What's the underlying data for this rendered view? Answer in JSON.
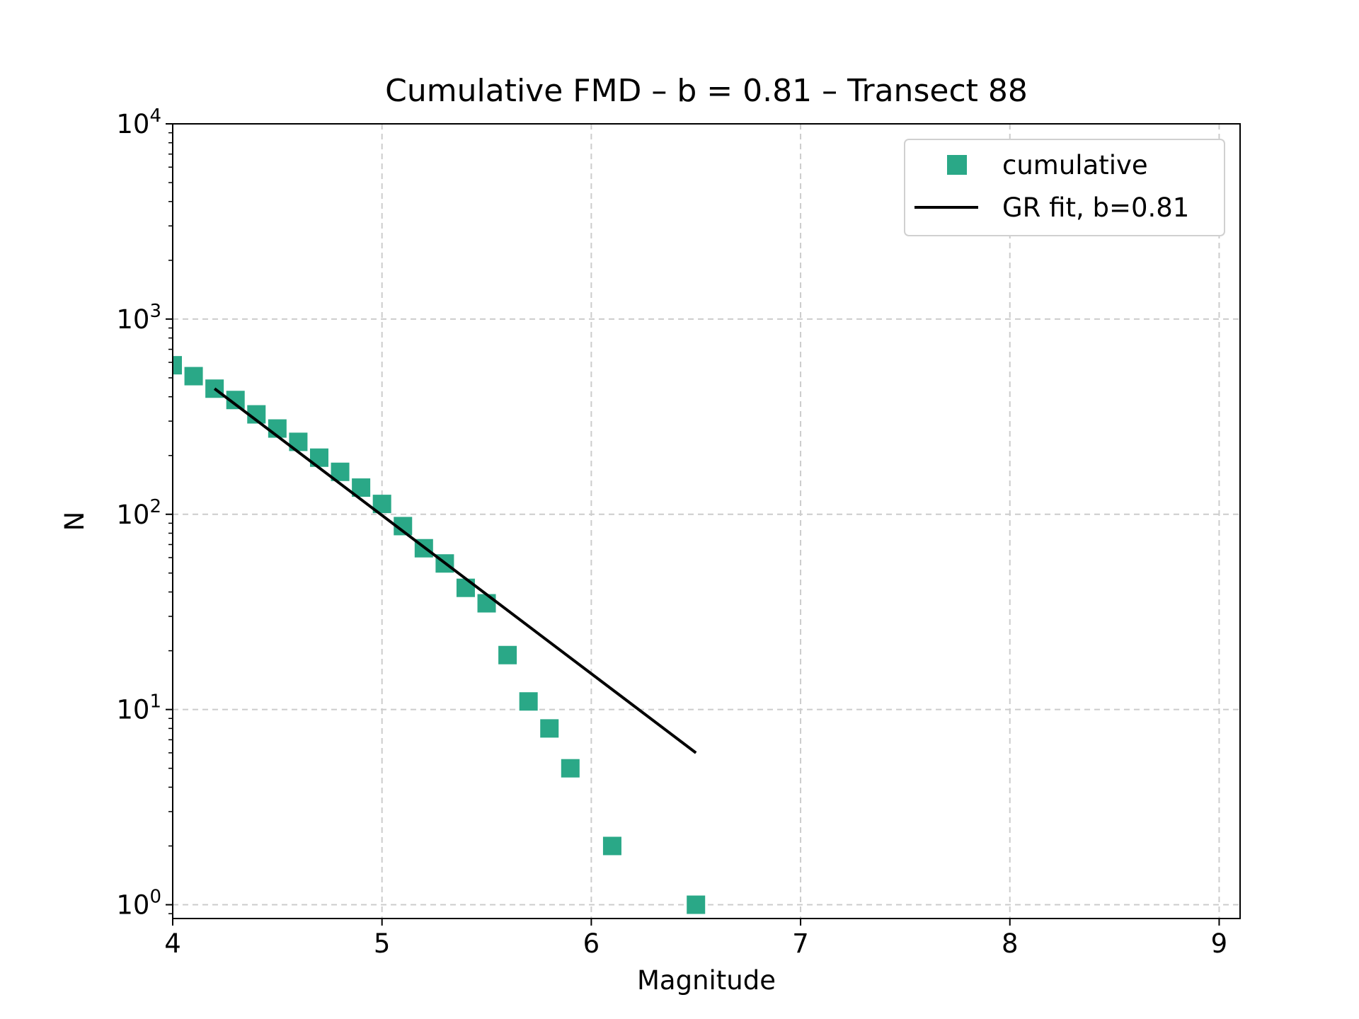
{
  "chart_data": {
    "type": "scatter",
    "title": "Cumulative FMD – b = 0.81 – Transect 88",
    "xlabel": "Magnitude",
    "ylabel": "N",
    "xlim": [
      4.0,
      9.1
    ],
    "ylim": [
      0.85,
      10000
    ],
    "yscale": "log",
    "grid": true,
    "legend_position": "top-right",
    "x_ticks": [
      4,
      5,
      6,
      7,
      8,
      9
    ],
    "y_ticks": [
      {
        "value": 1,
        "base": "10",
        "exp": "0"
      },
      {
        "value": 10,
        "base": "10",
        "exp": "1"
      },
      {
        "value": 100,
        "base": "10",
        "exp": "2"
      },
      {
        "value": 1000,
        "base": "10",
        "exp": "3"
      },
      {
        "value": 10000,
        "base": "10",
        "exp": "4"
      }
    ],
    "series": [
      {
        "name": "cumulative",
        "kind": "scatter",
        "marker": "square",
        "color": "#2aa887",
        "x": [
          4.0,
          4.1,
          4.2,
          4.3,
          4.4,
          4.5,
          4.6,
          4.7,
          4.8,
          4.9,
          5.0,
          5.1,
          5.2,
          5.3,
          5.4,
          5.5,
          5.6,
          5.7,
          5.8,
          5.9,
          6.1,
          6.5
        ],
        "y": [
          580,
          510,
          440,
          385,
          325,
          275,
          235,
          195,
          165,
          137,
          113,
          87,
          67,
          56,
          42,
          35,
          19,
          11,
          8,
          5,
          2,
          1
        ]
      },
      {
        "name": "GR fit, b=0.81",
        "kind": "line",
        "color": "#000000",
        "x": [
          4.2,
          6.5
        ],
        "y": [
          440,
          6
        ]
      }
    ]
  }
}
